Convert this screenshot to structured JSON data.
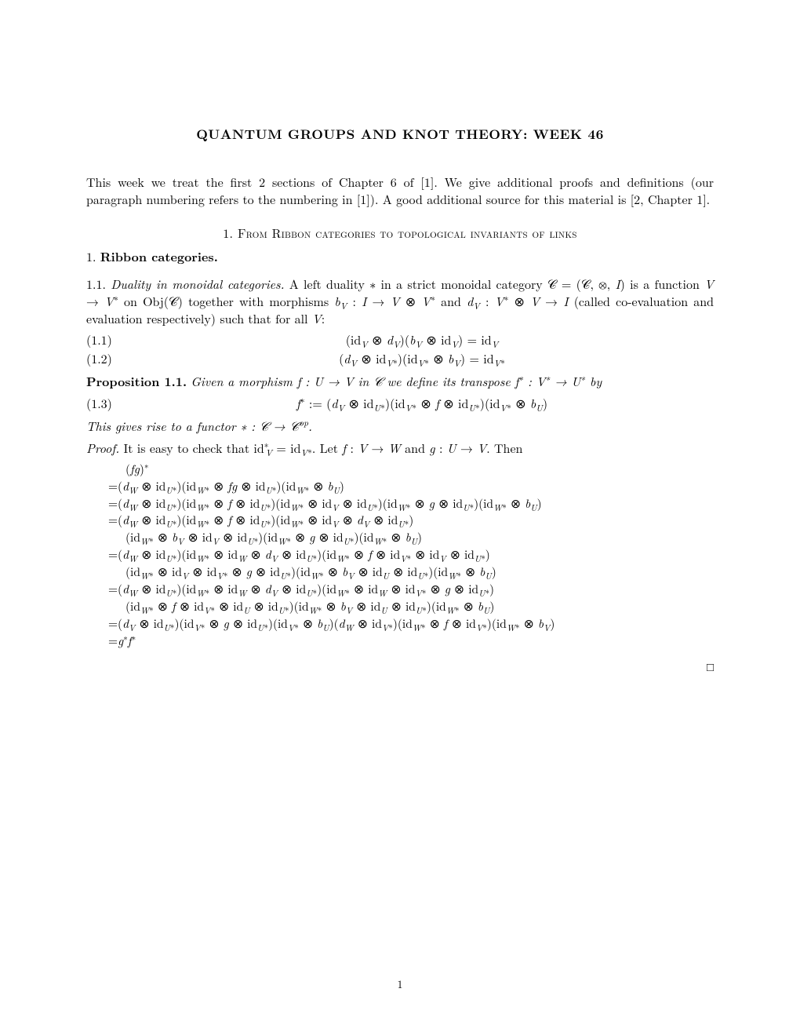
{
  "title": "QUANTUM GROUPS AND KNOT THEORY: WEEK 46",
  "intro": "This week we treat the first 2 sections of Chapter 6 of [1]. We give additional proofs and definitions (our paragraph numbering refers to the numbering in [1]). A good additional source for this material is [2, Chapter 1].",
  "section1_num": "1.",
  "section1_title": "From Ribbon categories to topological invariants of links",
  "subhead_num": "1.",
  "subhead_title": "Ribbon categories.",
  "subsub_num": "1.1.",
  "subsub_title": "Duality in monoidal categories.",
  "subsub_text_a": " A left duality ∗ in a strict monoidal category ",
  "subsub_text_b": " is a function ",
  "subsub_text_c": " on Obj(",
  "subsub_text_d": ") together with morphisms ",
  "subsub_text_e": " and ",
  "subsub_text_f": " (called co-evaluation and evaluation respectively) such that for all ",
  "eq11_num": "(1.1)",
  "eq11": "(id_V ⊗ d_V)(b_V ⊗ id_V) = id_V",
  "eq12_num": "(1.2)",
  "eq12": "(d_V ⊗ id_{V*})(id_{V*} ⊗ b_V) = id_{V*}",
  "prop_label": "Proposition 1.1.",
  "prop_text_a": "Given a morphism ",
  "prop_text_b": " in ",
  "prop_text_c": " we define its transpose ",
  "prop_text_d": " by",
  "eq13_num": "(1.3)",
  "eq13": "f* := (d_V ⊗ id_{U*})(id_{V*} ⊗ f ⊗ id_{U*})(id_{V*} ⊗ b_U)",
  "prop_tail": "This gives rise to a functor ",
  "proof_label": "Proof.",
  "proof_text_a": " It is easy to check that id",
  "proof_text_b": " = id",
  "proof_text_c": ". Let ",
  "proof_text_d": " and ",
  "proof_text_e": ". Then",
  "fgstar": "(fg)*",
  "chain": [
    "=(d_W ⊗ id_{U*})(id_{W*} ⊗ fg ⊗ id_{U*})(id_{W*} ⊗ b_U)",
    "=(d_W ⊗ id_{U*})(id_{W*} ⊗ f ⊗ id_{U*})(id_{W*} ⊗ id_V ⊗ id_{U*})(id_{W*} ⊗ g ⊗ id_{U*})(id_{W*} ⊗ b_U)",
    "=(d_W ⊗ id_{U*})(id_{W*} ⊗ f ⊗ id_{U*})(id_{W*} ⊗ id_V ⊗ d_V ⊗ id_{U*})",
    "  (id_{W*} ⊗ b_V ⊗ id_V ⊗ id_{U*})(id_{W*} ⊗ g ⊗ id_{U*})(id_{W*} ⊗ b_U)",
    "=(d_W ⊗ id_{U*})(id_{W*} ⊗ id_W ⊗ d_V ⊗ id_{U*})(id_{W*} ⊗ f ⊗ id_{V*} ⊗ id_V ⊗ id_{U*})",
    "  (id_{W*} ⊗ id_V ⊗ id_{V*} ⊗ g ⊗ id_{U*})(id_{W*} ⊗ b_V ⊗ id_U ⊗ id_{U*})(id_{W*} ⊗ b_U)",
    "=(d_W ⊗ id_{U*})(id_{W*} ⊗ id_W ⊗ d_V ⊗ id_{U*})(id_{W*} ⊗ id_W ⊗ id_{V*} ⊗ g ⊗ id_{U*})",
    "  (id_{W*} ⊗ f ⊗ id_{V*} ⊗ id_U ⊗ id_{U*})(id_{W*} ⊗ b_V ⊗ id_U ⊗ id_{U*})(id_{W*} ⊗ b_U)",
    "=(d_V ⊗ id_{U*})(id_{V*} ⊗ g ⊗ id_{U*})(id_{V*} ⊗ b_U)(d_W ⊗ id_{V*})(id_{W*} ⊗ f ⊗ id_{V*})(id_{W*} ⊗ b_V)",
    "=g*f*"
  ],
  "qed": "□",
  "pagenum": "1"
}
